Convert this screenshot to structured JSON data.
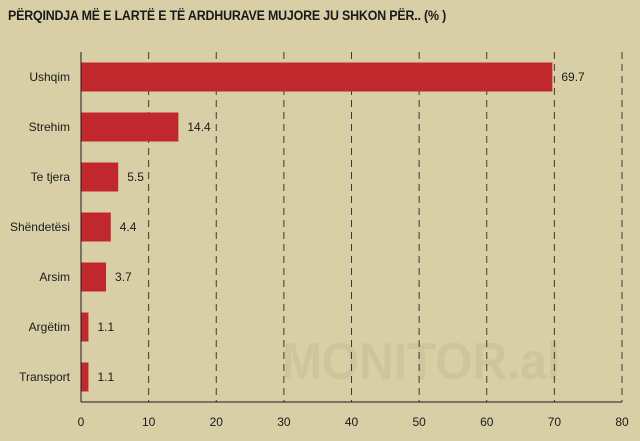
{
  "watermark": "MONITOR.al",
  "chart_data": {
    "type": "bar",
    "orientation": "horizontal",
    "title": "PËRQINDJA MË E LARTË E TË ARDHURAVE MUJORE JU SHKON PËR.. (% )",
    "categories": [
      "Ushqim",
      "Strehim",
      "Te tjera",
      "Shëndetësi",
      "Arsim",
      "Argëtim",
      "Transport"
    ],
    "values": [
      69.7,
      14.4,
      5.5,
      4.4,
      3.7,
      1.1,
      1.1
    ],
    "value_labels": [
      "69.7",
      "14.4",
      "5.5",
      "4.4",
      "3.7",
      "1.1",
      "1.1"
    ],
    "xlim": [
      0,
      80
    ],
    "xticks": [
      0,
      10,
      20,
      30,
      40,
      50,
      60,
      70,
      80
    ],
    "grid": "vertical-dashed",
    "legend": "none",
    "xlabel": "",
    "ylabel": "",
    "bar_color": "#c0282e"
  }
}
